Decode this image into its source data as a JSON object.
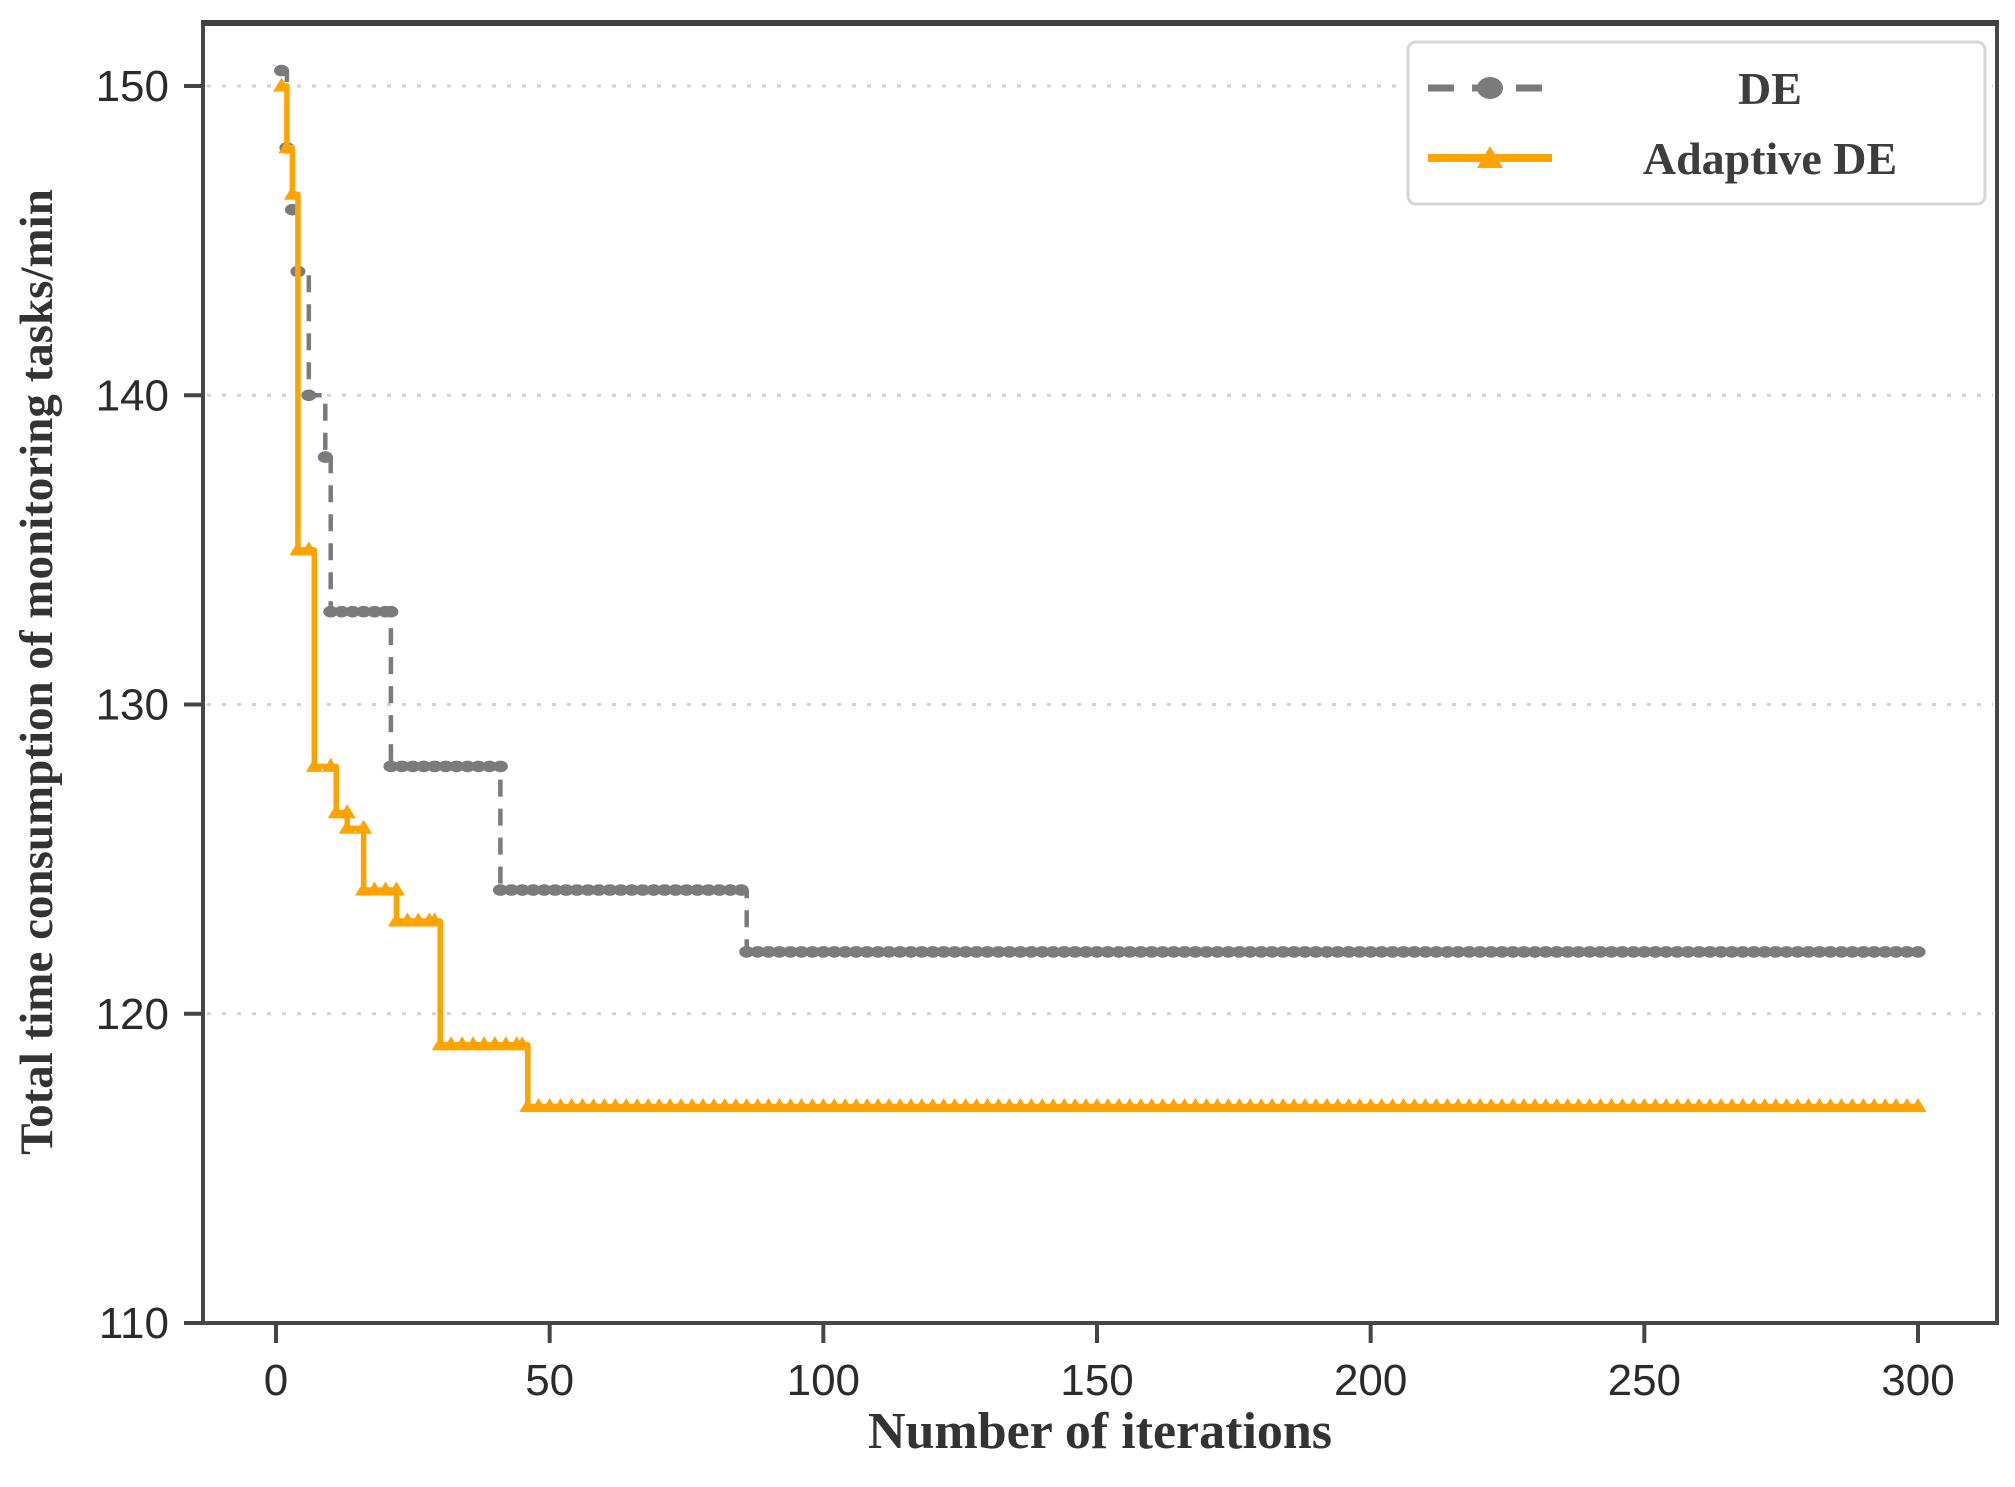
{
  "figure": {
    "background": "#ffffff",
    "plot_border_color": "#474747",
    "grid_color": "#d2d2d2",
    "tick_color": "#454545",
    "tick_label_color": "#2b2b2b",
    "axis_title_color": "#333333"
  },
  "chart_data": {
    "type": "line",
    "title": "",
    "xlabel": "Number of iterations",
    "ylabel": "Total time consumption of monitoring tasks/min",
    "xlim": [
      -13.3,
      314.5
    ],
    "ylim": [
      110,
      152.1
    ],
    "xticks": [
      0,
      50,
      100,
      150,
      200,
      250,
      300
    ],
    "yticks": [
      110,
      120,
      130,
      140,
      150
    ],
    "grid_yvalues": [
      120,
      130,
      140,
      150
    ],
    "grid_style": "dotted-horizontal",
    "legend_position": "top-right",
    "series": [
      {
        "name": "DE",
        "color": "#7b7b7b",
        "line_style": "dashed",
        "marker": "circle",
        "points": [
          [
            1,
            150.5
          ],
          [
            2,
            148
          ],
          [
            3,
            146
          ],
          [
            4,
            144
          ],
          [
            6,
            140
          ],
          [
            9,
            138
          ],
          [
            10,
            133
          ],
          [
            21,
            133
          ],
          [
            21,
            128
          ],
          [
            41,
            128
          ],
          [
            41,
            124
          ],
          [
            85,
            124
          ],
          [
            86,
            122
          ],
          [
            300,
            122
          ]
        ]
      },
      {
        "name": "Adaptive DE",
        "color": "#FFA301",
        "line_style": "solid",
        "marker": "triangle-up",
        "points": [
          [
            1,
            150
          ],
          [
            2,
            148
          ],
          [
            3,
            146.5
          ],
          [
            4,
            135
          ],
          [
            6,
            135
          ],
          [
            7,
            128
          ],
          [
            10,
            128
          ],
          [
            11,
            126.5
          ],
          [
            13,
            126.5
          ],
          [
            13,
            126
          ],
          [
            16,
            126
          ],
          [
            16,
            124
          ],
          [
            22,
            124
          ],
          [
            22,
            123
          ],
          [
            29,
            123
          ],
          [
            30,
            119
          ],
          [
            45,
            119
          ],
          [
            46,
            117
          ],
          [
            300,
            117
          ]
        ]
      }
    ]
  },
  "legend": {
    "items": [
      {
        "label": "DE"
      },
      {
        "label": "Adaptive DE"
      }
    ]
  }
}
